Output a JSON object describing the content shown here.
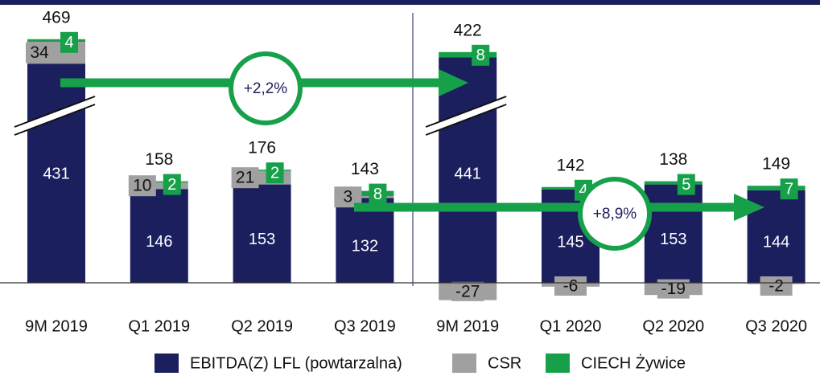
{
  "chart_data": {
    "type": "stacked_bar",
    "categories": [
      "9M 2019",
      "Q1 2019",
      "Q2 2019",
      "Q3 2019",
      "9M 2019",
      "Q1 2020",
      "Q2 2020",
      "Q3 2020"
    ],
    "series": [
      {
        "name": "EBITDA(Z) LFL (powtarzalna)",
        "color": "#1b1f5e",
        "values": [
          431,
          146,
          153,
          132,
          441,
          145,
          153,
          144
        ]
      },
      {
        "name": "CSR",
        "color": "#a0a0a0",
        "values": [
          34,
          10,
          21,
          3,
          -27,
          -6,
          -19,
          -2
        ]
      },
      {
        "name": "CIECH Żywice",
        "color": "#17a04a",
        "values": [
          4,
          2,
          2,
          8,
          8,
          4,
          5,
          7
        ]
      }
    ],
    "totals": [
      469,
      158,
      176,
      143,
      422,
      142,
      138,
      149
    ],
    "annotations": [
      "+2,2%",
      "+8,9%"
    ]
  }
}
